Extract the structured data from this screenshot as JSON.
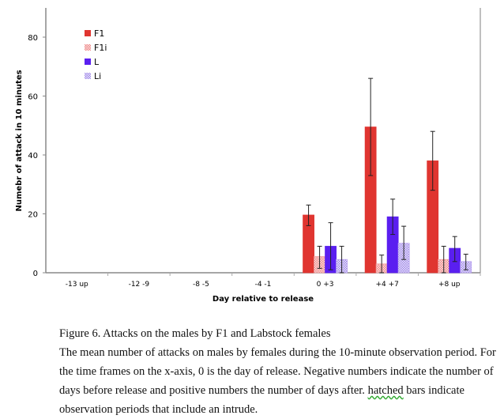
{
  "chart_data": {
    "type": "bar",
    "xlabel": "Day relative to release",
    "ylabel": "Numebr of attack in 10 minutes",
    "ylim": [
      0,
      85
    ],
    "yticks": [
      0,
      20,
      40,
      60,
      80
    ],
    "grid": false,
    "legend_placement": "top-left",
    "categories": [
      "-13 up",
      "-12 -9",
      "-8 -5",
      "-4 -1",
      "0 +3",
      "+4 +7",
      "+8 up"
    ],
    "series": [
      {
        "name": "F1",
        "color": "#e03530",
        "hatched": false,
        "values": [
          0,
          0,
          0,
          0,
          19.6,
          49.5,
          38
        ],
        "err_hi": [
          0,
          0,
          0,
          0,
          23,
          66,
          48
        ],
        "err_lo": [
          0,
          0,
          0,
          0,
          16,
          33,
          28
        ]
      },
      {
        "name": "F1i",
        "color": "#f0a0a0",
        "hatched": true,
        "values": [
          0,
          0,
          0,
          0,
          5.5,
          3,
          4.5
        ],
        "err_hi": [
          0,
          0,
          0,
          0,
          9,
          6,
          9
        ],
        "err_lo": [
          0,
          0,
          0,
          0,
          1.5,
          0,
          0
        ]
      },
      {
        "name": "L",
        "color": "#5a1ff0",
        "hatched": false,
        "values": [
          0,
          0,
          0,
          0,
          9,
          19,
          8.3
        ],
        "err_hi": [
          0,
          0,
          0,
          0,
          17,
          25,
          12.3
        ],
        "err_lo": [
          0,
          0,
          0,
          0,
          1,
          13,
          3.8
        ]
      },
      {
        "name": "Li",
        "color": "#b8a0f0",
        "hatched": true,
        "values": [
          0,
          0,
          0,
          0,
          4.5,
          10,
          3.8
        ],
        "err_hi": [
          0,
          0,
          0,
          0,
          9,
          15.8,
          6.3
        ],
        "err_lo": [
          0,
          0,
          0,
          0,
          0,
          4.5,
          1
        ]
      }
    ]
  },
  "caption": {
    "title": "Figure 6. Attacks on the males by F1 and Labstock females",
    "body_pre": "The mean number of attacks on males by females during the 10-minute observation period. For the time frames on the x-axis, 0 is the day of release. Negative numbers indicate the number of days before release and positive numbers the number of days after. ",
    "body_underlined": "hatched",
    "body_post": " bars indicate observation periods that include an intrude."
  }
}
